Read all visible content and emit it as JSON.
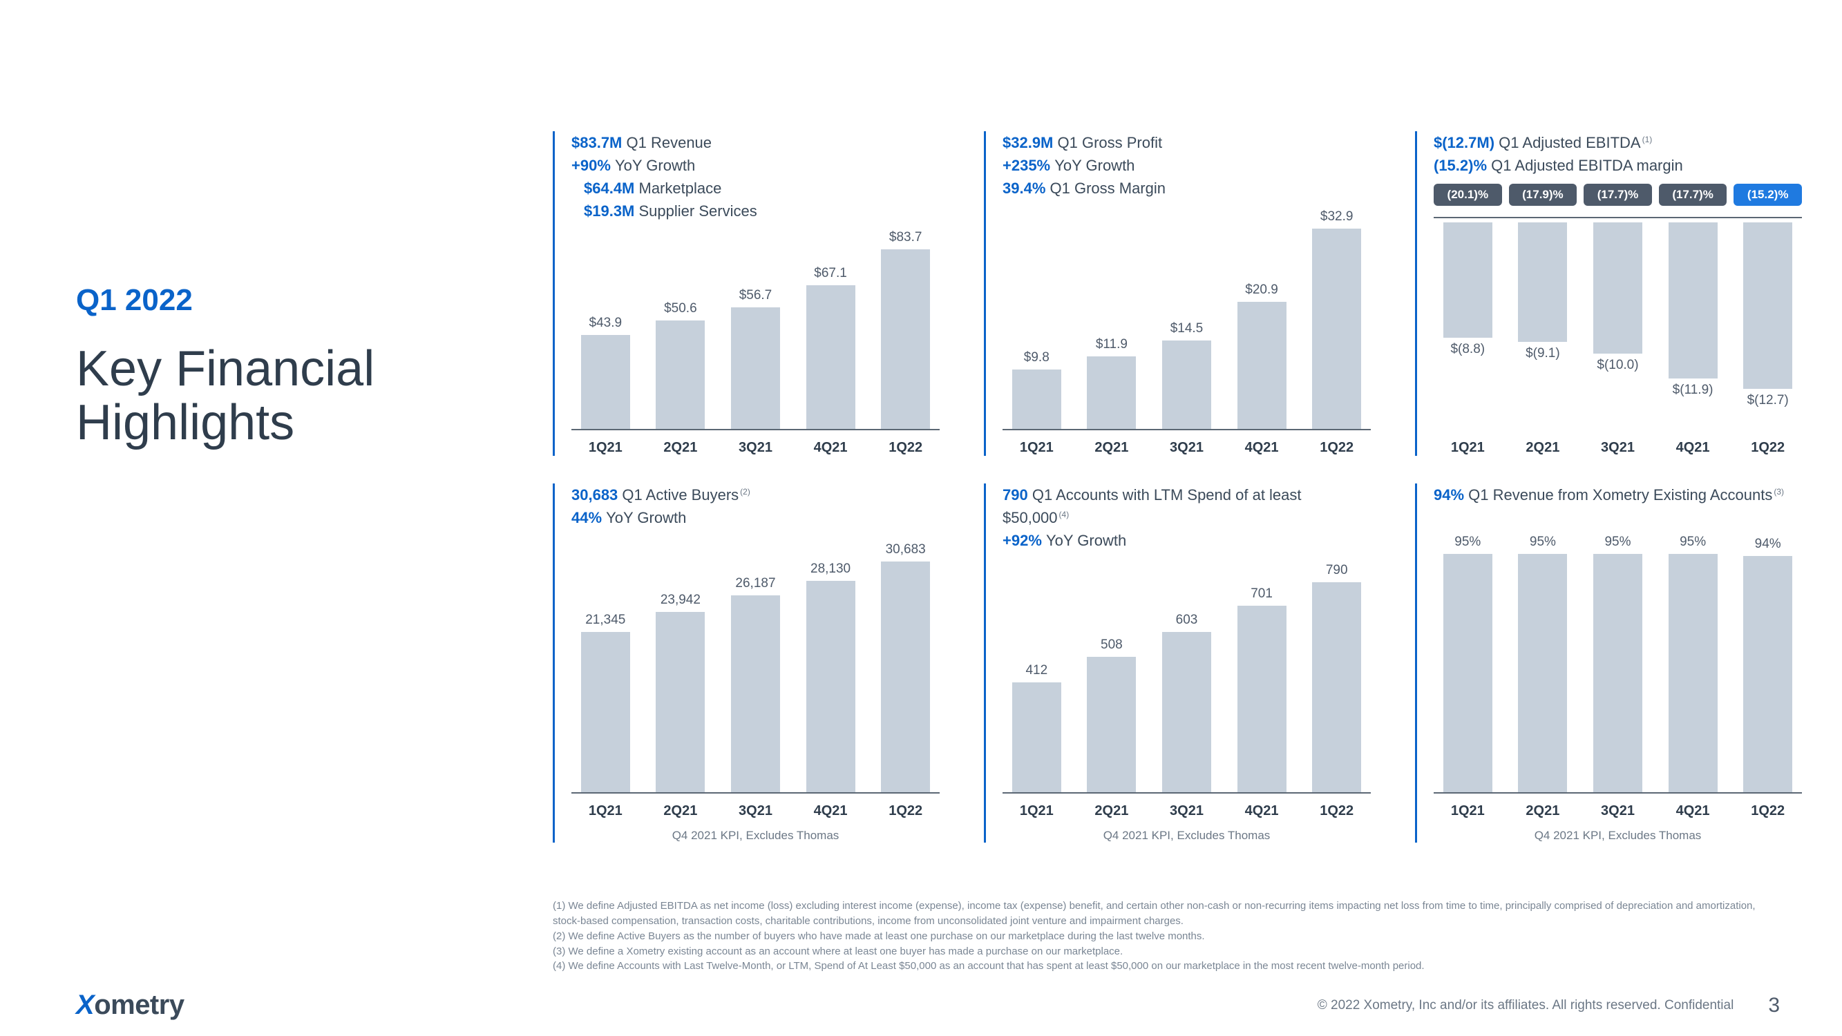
{
  "colors": {
    "accent": "#0a63c9",
    "bar_fill": "#c6d0db",
    "axis": "#5b6774",
    "text": "#3b4a5a",
    "pill_bg": "#4e5a6a",
    "pill_accent": "#1f7ae0"
  },
  "title": {
    "period": "Q1 2022",
    "main": "Key Financial\nHighlights"
  },
  "categories": [
    "1Q21",
    "2Q21",
    "3Q21",
    "4Q21",
    "1Q22"
  ],
  "panel_footnote": "Q4 2021 KPI, Excludes Thomas",
  "charts": {
    "revenue": {
      "type": "bar",
      "headlines": [
        {
          "value": "$83.7M",
          "text": "Q1 Revenue"
        },
        {
          "value": "+90%",
          "text": "YoY Growth"
        },
        {
          "value": "$64.4M",
          "text": "Marketplace",
          "indent": true
        },
        {
          "value": "$19.3M",
          "text": "Supplier Services",
          "indent": true
        }
      ],
      "values": [
        43.9,
        50.6,
        56.7,
        67.1,
        83.7
      ],
      "labels": [
        "$43.9",
        "$50.6",
        "$56.7",
        "$67.1",
        "$83.7"
      ],
      "ymax": 83.7,
      "show_panel_footnote": false
    },
    "gross_profit": {
      "type": "bar",
      "headlines": [
        {
          "value": "$32.9M",
          "text": "Q1 Gross Profit"
        },
        {
          "value": "+235%",
          "text": "YoY Growth"
        },
        {
          "value": "39.4%",
          "text": "Q1 Gross Margin"
        }
      ],
      "values": [
        9.8,
        11.9,
        14.5,
        20.9,
        32.9
      ],
      "labels": [
        "$9.8",
        "$11.9",
        "$14.5",
        "$20.9",
        "$32.9"
      ],
      "ymax": 32.9,
      "show_panel_footnote": false
    },
    "ebitda": {
      "type": "bar-negative",
      "headlines": [
        {
          "value": "$(12.7M)",
          "text": "Q1 Adjusted EBITDA",
          "superscript": "(1)"
        },
        {
          "value": "(15.2)%",
          "text": "Q1 Adjusted EBITDA margin"
        }
      ],
      "top_pills": [
        "(20.1)%",
        "(17.9)%",
        "(17.7)%",
        "(17.7)%",
        "(15.2)%"
      ],
      "top_pill_accent_index": 4,
      "values": [
        8.8,
        9.1,
        10.0,
        11.9,
        12.7
      ],
      "labels": [
        "$(8.8)",
        "$(9.1)",
        "$(10.0)",
        "$(11.9)",
        "$(12.7)"
      ],
      "ymax": 12.7,
      "show_panel_footnote": false
    },
    "active_buyers": {
      "type": "bar",
      "headlines": [
        {
          "value": "30,683",
          "text": "Q1 Active Buyers",
          "superscript": "(2)"
        },
        {
          "value": "44%",
          "text": "YoY Growth"
        }
      ],
      "values": [
        21345,
        23942,
        26187,
        28130,
        30683
      ],
      "labels": [
        "21,345",
        "23,942",
        "26,187",
        "28,130",
        "30,683"
      ],
      "ymax": 30683,
      "show_panel_footnote": true
    },
    "accounts_50k": {
      "type": "bar",
      "headlines": [
        {
          "value": "790",
          "text": "Q1 Accounts with LTM Spend of at least $50,000",
          "superscript": "(4)"
        },
        {
          "value": "+92%",
          "text": "YoY Growth"
        }
      ],
      "values": [
        412,
        508,
        603,
        701,
        790
      ],
      "labels": [
        "412",
        "508",
        "603",
        "701",
        "790"
      ],
      "ymax": 790,
      "show_panel_footnote": true
    },
    "existing_revenue": {
      "type": "bar",
      "headlines": [
        {
          "value": "94%",
          "text": "Q1 Revenue from Xometry Existing Accounts",
          "superscript": "(3)"
        }
      ],
      "values": [
        95,
        95,
        95,
        95,
        94
      ],
      "labels": [
        "95%",
        "95%",
        "95%",
        "95%",
        "94%"
      ],
      "ymax": 100,
      "show_panel_footnote": true
    }
  },
  "chart_order": [
    "revenue",
    "gross_profit",
    "ebitda",
    "active_buyers",
    "accounts_50k",
    "existing_revenue"
  ],
  "notes": [
    "(1) We define Adjusted EBITDA as net income (loss) excluding interest income (expense), income tax (expense) benefit, and certain other non-cash or non-recurring items impacting net loss from time to time, principally comprised of depreciation and amortization, stock-based compensation, transaction costs, charitable contributions, income from unconsolidated joint venture and impairment charges.",
    "(2) We define Active Buyers as the number of buyers who have made at least one purchase on our marketplace during the last twelve months.",
    "(3) We define a Xometry existing account as an account where at least one buyer has made a purchase on our marketplace.",
    "(4) We define Accounts with Last Twelve-Month, or LTM, Spend of At Least $50,000 as an account that has spent at least $50,000 on our marketplace in the most recent twelve-month period."
  ],
  "footer": {
    "logo_text": "ometry",
    "copyright": "© 2022  Xometry, Inc and/or its affiliates. All rights reserved. Confidential",
    "page": "3"
  }
}
